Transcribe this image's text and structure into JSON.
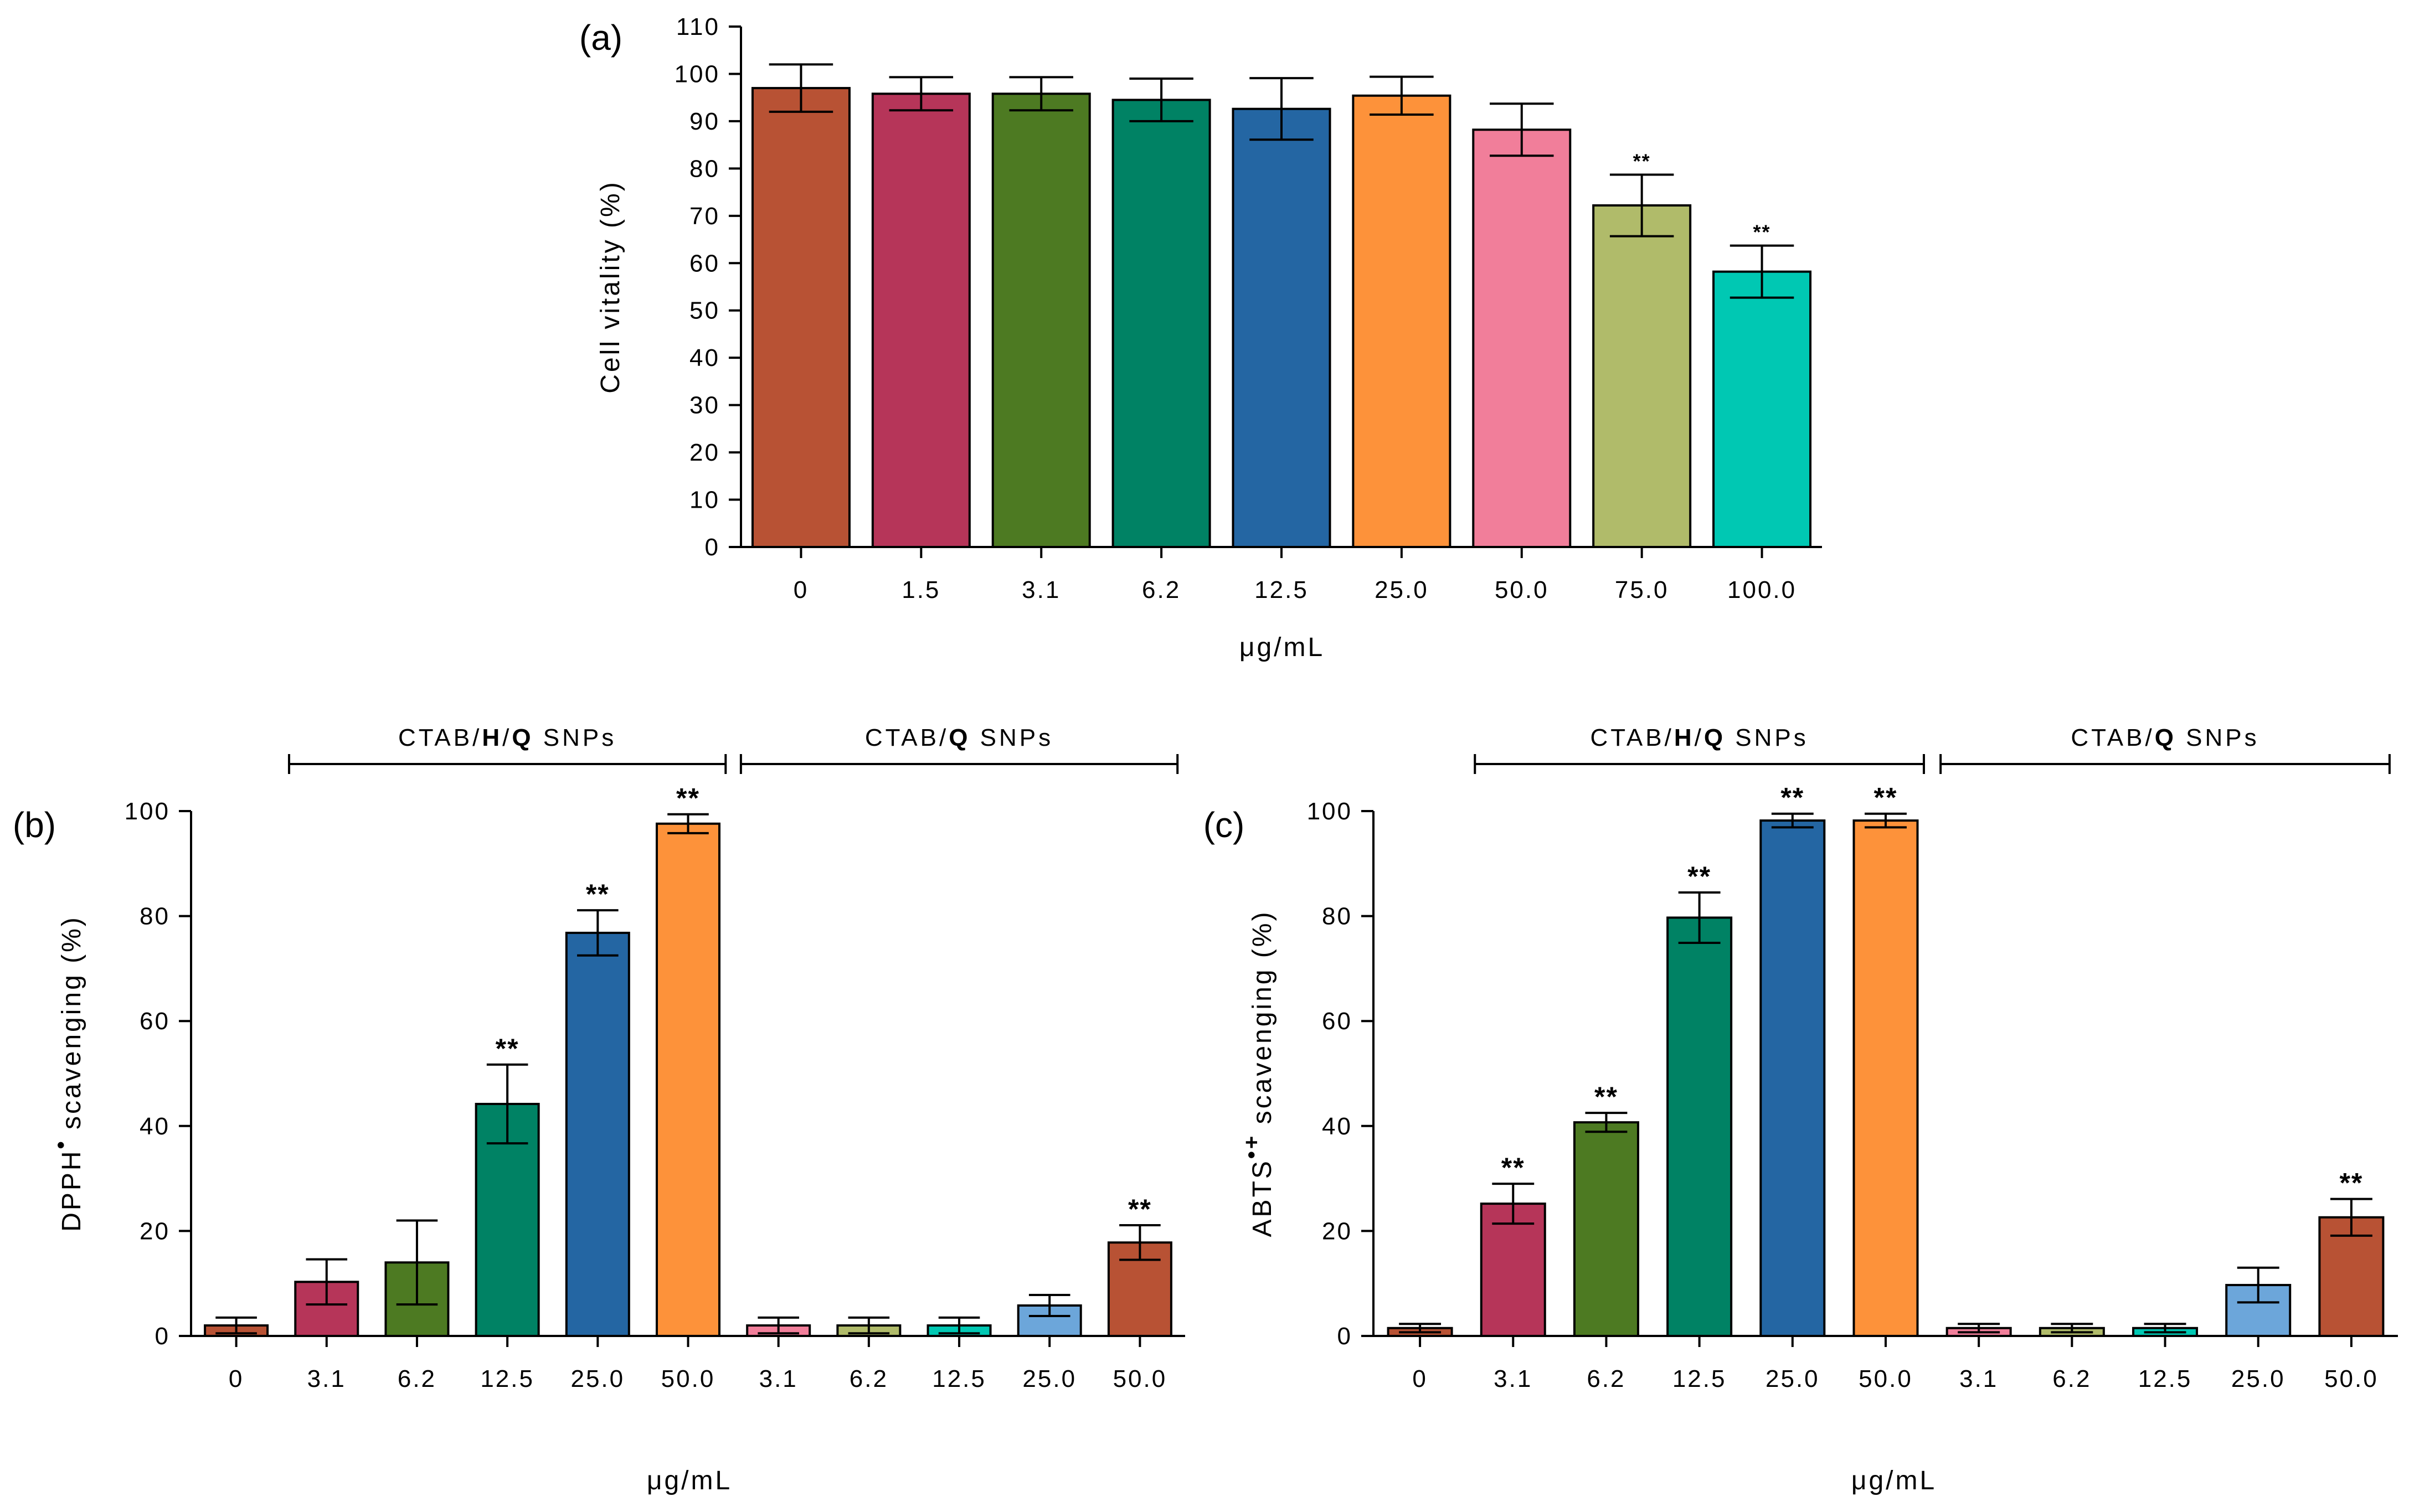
{
  "chart_data": [
    {
      "id": "a",
      "type": "bar",
      "panel_label": "(a)",
      "title": "",
      "xlabel": "μg/mL",
      "ylabel": "Cell vitality (%)",
      "ylim": [
        0,
        110
      ],
      "yticks": [
        "0",
        "10",
        "20",
        "30",
        "40",
        "50",
        "60",
        "70",
        "80",
        "90",
        "100",
        "110"
      ],
      "grid": false,
      "categories": [
        "0",
        "1.5",
        "3.1",
        "6.2",
        "12.5",
        "25.0",
        "50.0",
        "75.0",
        "100.0"
      ],
      "values": [
        97,
        95.8,
        95.8,
        94.5,
        92.6,
        95.4,
        88.2,
        72.2,
        58.2
      ],
      "errors": [
        5,
        3.5,
        3.5,
        4.5,
        6.5,
        4,
        5.5,
        6.5,
        5.5
      ],
      "significance": [
        "",
        "",
        "",
        "",
        "",
        "",
        "",
        "**",
        "**"
      ],
      "colors": [
        "#b85234",
        "#b63559",
        "#4d7a22",
        "#008264",
        "#2466a3",
        "#fd923a",
        "#f17e9a",
        "#b0bb6a",
        "#00c8b3"
      ],
      "groups": []
    },
    {
      "id": "b",
      "type": "bar",
      "panel_label": "(b)",
      "title": "",
      "xlabel": "μg/mL",
      "ylabel_main": "DPPH",
      "ylabel_sup": "•",
      "ylabel_rest": " scavenging (%)",
      "ylim": [
        0,
        100
      ],
      "yticks": [
        "0",
        "20",
        "40",
        "60",
        "80",
        "100"
      ],
      "grid": false,
      "categories": [
        "0",
        "3.1",
        "6.2",
        "12.5",
        "25.0",
        "50.0",
        "3.1",
        "6.2",
        "12.5",
        "25.0",
        "50.0"
      ],
      "values": [
        2,
        10.3,
        14,
        44.2,
        76.8,
        97.6,
        2,
        2,
        2,
        5.8,
        17.8
      ],
      "errors": [
        1.5,
        4.3,
        8,
        7.5,
        4.3,
        1.8,
        1.5,
        1.5,
        1.5,
        2,
        3.3
      ],
      "significance": [
        "",
        "",
        "",
        "**",
        "**",
        "**",
        "",
        "",
        "",
        "",
        "**"
      ],
      "colors": [
        "#b85234",
        "#b63559",
        "#4d7a22",
        "#008264",
        "#2466a3",
        "#fd923a",
        "#f17e9a",
        "#b0bb6a",
        "#00c8b3",
        "#6ca6da",
        "#b85234"
      ],
      "groups": [
        {
          "prefix": "CTAB/",
          "h": "H",
          "mid": "/",
          "q": "Q",
          "suffix": " SNPs",
          "from": 1,
          "to": 5
        },
        {
          "prefix": "CTAB/",
          "h": "",
          "mid": "",
          "q": "Q",
          "suffix": " SNPs",
          "from": 6,
          "to": 10
        }
      ]
    },
    {
      "id": "c",
      "type": "bar",
      "panel_label": "(c)",
      "title": "",
      "xlabel": "μg/mL",
      "ylabel_main": "ABTS",
      "ylabel_sup": "•+",
      "ylabel_rest": " scavenging (%)",
      "ylim": [
        0,
        100
      ],
      "yticks": [
        "0",
        "20",
        "40",
        "60",
        "80",
        "100"
      ],
      "grid": false,
      "categories": [
        "0",
        "3.1",
        "6.2",
        "12.5",
        "25.0",
        "50.0",
        "3.1",
        "6.2",
        "12.5",
        "25.0",
        "50.0"
      ],
      "values": [
        1.5,
        25.2,
        40.7,
        79.7,
        98.2,
        98.2,
        1.5,
        1.5,
        1.5,
        9.7,
        22.6
      ],
      "errors": [
        0.8,
        3.8,
        1.8,
        4.8,
        1.3,
        1.3,
        0.8,
        0.8,
        0.8,
        3.3,
        3.5
      ],
      "significance": [
        "",
        "**",
        "**",
        "**",
        "**",
        "**",
        "",
        "",
        "",
        "",
        "**"
      ],
      "colors": [
        "#b85234",
        "#b63559",
        "#4d7a22",
        "#008264",
        "#2466a3",
        "#fd923a",
        "#f17e9a",
        "#b0bb6a",
        "#00c8b3",
        "#6ca6da",
        "#b85234"
      ],
      "groups": [
        {
          "prefix": "CTAB/",
          "h": "H",
          "mid": "/",
          "q": "Q",
          "suffix": " SNPs",
          "from": 1,
          "to": 5
        },
        {
          "prefix": "CTAB/",
          "h": "",
          "mid": "",
          "q": "Q",
          "suffix": " SNPs",
          "from": 6,
          "to": 10
        }
      ]
    }
  ]
}
